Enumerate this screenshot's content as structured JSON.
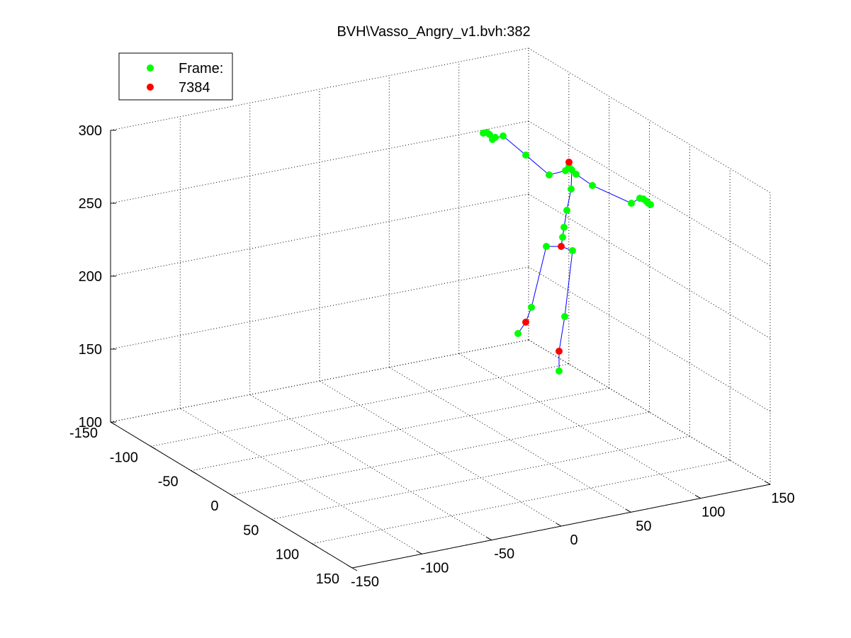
{
  "chart_data": {
    "type": "scatter",
    "title": "BVH\\Vasso_Angry_v1.bvh:382",
    "view": "3d",
    "grid": true,
    "legend": {
      "placement": "top-left",
      "entries": [
        {
          "label": "Frame:",
          "color": "#00ff00"
        },
        {
          "label": "7384",
          "color": "#ff0000"
        }
      ]
    },
    "axes": {
      "z": {
        "range": [
          100,
          300
        ],
        "ticks": [
          "100",
          "150",
          "200",
          "250",
          "300"
        ]
      },
      "y": {
        "range": [
          -150,
          150
        ],
        "ticks": [
          "-150",
          "-100",
          "-50",
          "0",
          "50",
          "100",
          "150"
        ]
      },
      "x": {
        "range": [
          -150,
          150
        ],
        "ticks": [
          "-150",
          "-100",
          "-50",
          "0",
          "50",
          "100",
          "150"
        ]
      }
    },
    "colors": {
      "skeleton_line": "#0000ff",
      "joint": "#00ff00",
      "highlight_joint": "#ff0000"
    },
    "series": [
      {
        "name": "Frame:",
        "color": "#00ff00"
      },
      {
        "name": "7384",
        "color": "#ff0000"
      }
    ]
  }
}
